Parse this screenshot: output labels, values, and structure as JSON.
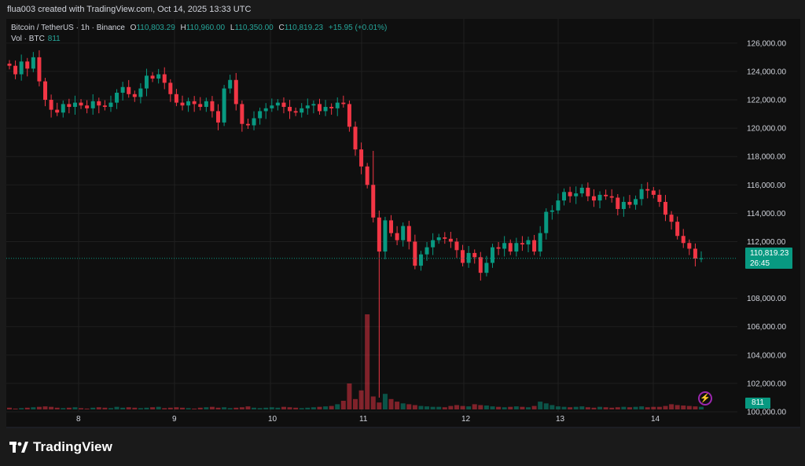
{
  "top_note": "flua003 created with TradingView.com, Oct 14, 2025 13:33 UTC",
  "legend": {
    "symbol": "Bitcoin / TetherUS · 1h · Binance",
    "open_label": "O",
    "open": "110,803.29",
    "high_label": "H",
    "high": "110,960.00",
    "low_label": "L",
    "low": "110,350.00",
    "close_label": "C",
    "close": "110,819.23",
    "change": "+15.95 (+0.01%)",
    "vol_label": "Vol · BTC",
    "vol_value": "811"
  },
  "price_tag": {
    "price": "110,819.23",
    "countdown": "26:45"
  },
  "volume_tag": "811",
  "footer": {
    "brand": "TradingView"
  },
  "colors": {
    "up": "#089981",
    "down": "#f23645",
    "background": "#0f0f0f",
    "grid": "#1f1f1f",
    "text": "#d1d4dc"
  },
  "chart_data": {
    "type": "candlestick",
    "y_ticks": [
      "126,000.00",
      "124,000.00",
      "122,000.00",
      "120,000.00",
      "118,000.00",
      "116,000.00",
      "114,000.00",
      "112,000.00",
      "108,000.00",
      "106,000.00",
      "104,000.00",
      "102,000.00",
      "100,000.00"
    ],
    "ylim": [
      100000,
      126600
    ],
    "x_ticks": [
      "8",
      "9",
      "10",
      "11",
      "12",
      "13",
      "14"
    ],
    "last_price": 110819.23,
    "ohlc_anchor_closes": [
      124400,
      123800,
      124700,
      124200,
      125000,
      123300,
      122000,
      121300,
      121100,
      121700,
      121500,
      121800,
      121600,
      121400,
      121900,
      121600,
      121500,
      121800,
      122500,
      122900,
      122400,
      122200,
      122800,
      123700,
      123500,
      123800,
      123200,
      122400,
      121800,
      121600,
      121900,
      121700,
      121500,
      121900,
      121200,
      120400,
      122800,
      123400,
      121700,
      120300,
      120200,
      120700,
      121200,
      121400,
      121600,
      121800,
      121500,
      121200,
      121100,
      121400,
      121600,
      121700,
      121200,
      121500,
      121400,
      121800,
      121700,
      120100,
      118500,
      117300,
      116000,
      113700,
      111300,
      113500,
      112600,
      112100,
      113100,
      112000,
      110300,
      111100,
      111600,
      112100,
      112300,
      112200,
      112000,
      111400,
      110500,
      111200,
      110900,
      109800,
      110500,
      111600,
      111500,
      111900,
      111300,
      111900,
      111800,
      112100,
      111300,
      112600,
      114100,
      114200,
      114900,
      115500,
      115200,
      115400,
      115800,
      115200,
      114900,
      115300,
      115200,
      115100,
      114300,
      114800,
      114600,
      115000,
      115700,
      115600,
      115300,
      114800,
      113900,
      113400,
      112400,
      111900,
      111500,
      110800,
      110819
    ],
    "volume_profile": [
      0.2,
      0.1,
      0.15,
      0.2,
      0.25,
      0.3,
      0.35,
      0.3,
      0.2,
      0.15,
      0.2,
      0.25,
      0.15,
      0.1,
      0.2,
      0.25,
      0.2,
      0.15,
      0.3,
      0.2,
      0.25,
      0.2,
      0.15,
      0.2,
      0.25,
      0.3,
      0.15,
      0.2,
      0.25,
      0.2,
      0.15,
      0.1,
      0.2,
      0.25,
      0.3,
      0.2,
      0.25,
      0.15,
      0.2,
      0.25,
      0.35,
      0.2,
      0.15,
      0.2,
      0.25,
      0.2,
      0.3,
      0.25,
      0.2,
      0.15,
      0.2,
      0.25,
      0.3,
      0.35,
      0.4,
      0.6,
      1.0,
      3.0,
      1.2,
      2.2,
      11.0,
      1.5,
      0.8,
      1.8,
      1.2,
      0.9,
      0.7,
      0.6,
      0.5,
      0.4,
      0.35,
      0.3,
      0.3,
      0.25,
      0.4,
      0.5,
      0.4,
      0.35,
      0.6,
      0.5,
      0.45,
      0.35,
      0.3,
      0.25,
      0.3,
      0.35,
      0.3,
      0.25,
      0.4,
      0.9,
      0.7,
      0.5,
      0.35,
      0.3,
      0.25,
      0.3,
      0.35,
      0.25,
      0.2,
      0.3,
      0.25,
      0.2,
      0.25,
      0.3,
      0.25,
      0.3,
      0.35,
      0.25,
      0.3,
      0.3,
      0.4,
      0.6,
      0.5,
      0.45,
      0.4,
      0.35,
      0.3
    ]
  }
}
